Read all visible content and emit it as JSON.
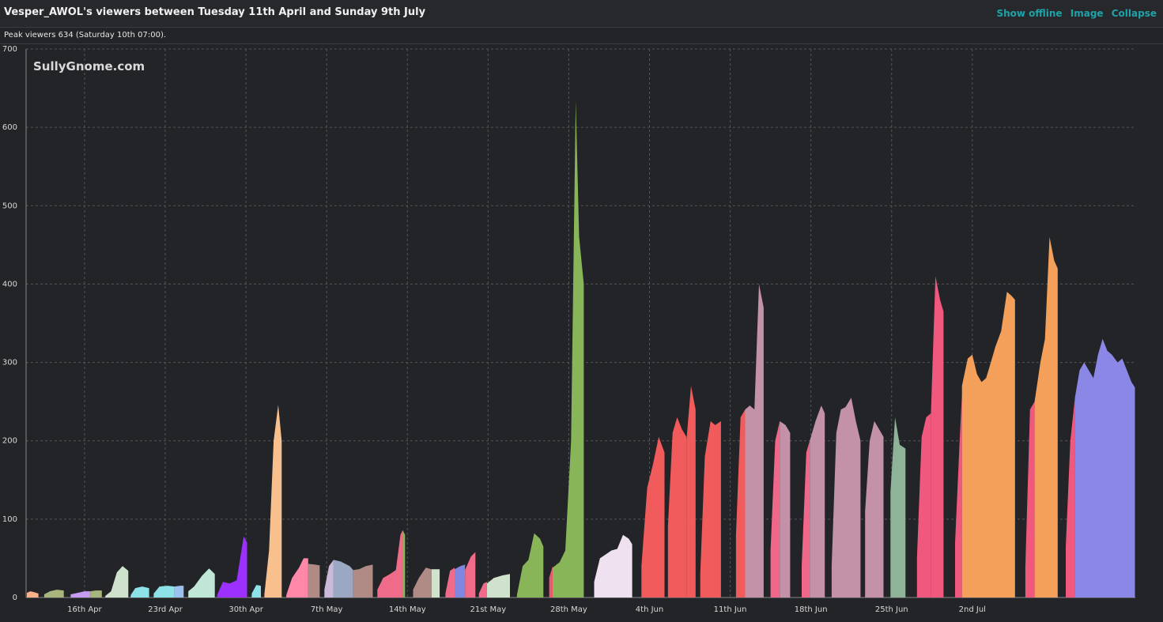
{
  "header": {
    "title": "Vesper_AWOL's viewers between Tuesday 11th April and Sunday 9th July",
    "actions": [
      "Show offline",
      "Image",
      "Collapse"
    ]
  },
  "subtitle": "Peak viewers 634 (Saturday 10th 07:00).",
  "watermark": "SullyGnome.com",
  "chart_data": {
    "type": "area",
    "title": "Vesper_AWOL's viewers between Tuesday 11th April and Sunday 9th July",
    "xlabel": "",
    "ylabel": "",
    "x_unit": "days since 11 Apr",
    "xlim": [
      0,
      89
    ],
    "ylim": [
      0,
      700
    ],
    "y_ticks": [
      0,
      100,
      200,
      300,
      400,
      500,
      600,
      700
    ],
    "x_ticks": [
      {
        "label": "16th Apr",
        "x": 5
      },
      {
        "label": "23rd Apr",
        "x": 12
      },
      {
        "label": "30th Apr",
        "x": 19
      },
      {
        "label": "7th May",
        "x": 26
      },
      {
        "label": "14th May",
        "x": 33
      },
      {
        "label": "21st May",
        "x": 40
      },
      {
        "label": "28th May",
        "x": 47
      },
      {
        "label": "4th Jun",
        "x": 54
      },
      {
        "label": "11th Jun",
        "x": 61
      },
      {
        "label": "18th Jun",
        "x": 68
      },
      {
        "label": "25th Jun",
        "x": 75
      },
      {
        "label": "2nd Jul",
        "x": 82
      }
    ],
    "grid": true,
    "streams": [
      {
        "color": "#ffb28a",
        "points": [
          [
            0.0,
            6
          ],
          [
            0.3,
            8
          ],
          [
            0.6,
            7
          ],
          [
            1.0,
            5
          ]
        ]
      },
      {
        "color": "#a8b67e",
        "points": [
          [
            1.5,
            4
          ],
          [
            2.0,
            8
          ],
          [
            2.6,
            10
          ],
          [
            3.2,
            9
          ]
        ]
      },
      {
        "color": "#c49bf0",
        "points": [
          [
            3.8,
            4
          ],
          [
            4.4,
            6
          ],
          [
            5.0,
            8
          ],
          [
            5.5,
            8
          ]
        ]
      },
      {
        "color": "#a8b67e",
        "points": [
          [
            5.5,
            8
          ],
          [
            6.0,
            9
          ],
          [
            6.5,
            9
          ]
        ]
      },
      {
        "color": "#cfe3cc",
        "points": [
          [
            6.8,
            2
          ],
          [
            7.3,
            8
          ],
          [
            7.8,
            32
          ],
          [
            8.3,
            40
          ],
          [
            8.8,
            34
          ]
        ]
      },
      {
        "color": "#8de2e8",
        "points": [
          [
            9.0,
            3
          ],
          [
            9.4,
            12
          ],
          [
            10.0,
            14
          ],
          [
            10.6,
            12
          ]
        ]
      },
      {
        "color": "#8de2e8",
        "points": [
          [
            11.0,
            5
          ],
          [
            11.5,
            14
          ],
          [
            12.2,
            15
          ],
          [
            12.8,
            14
          ]
        ]
      },
      {
        "color": "#9cc1f0",
        "points": [
          [
            12.8,
            14
          ],
          [
            13.3,
            15
          ],
          [
            13.6,
            15
          ]
        ]
      },
      {
        "color": "#bfe6d6",
        "points": [
          [
            14.0,
            8
          ],
          [
            14.5,
            14
          ],
          [
            15.2,
            28
          ],
          [
            15.8,
            37
          ],
          [
            16.3,
            30
          ]
        ]
      },
      {
        "color": "#9b30ff",
        "points": [
          [
            16.5,
            3
          ],
          [
            17.0,
            20
          ],
          [
            17.6,
            18
          ],
          [
            18.2,
            22
          ],
          [
            18.8,
            78
          ],
          [
            19.1,
            70
          ]
        ]
      },
      {
        "color": "#8de2e8",
        "points": [
          [
            19.5,
            5
          ],
          [
            19.9,
            16
          ],
          [
            20.3,
            15
          ]
        ]
      },
      {
        "color": "#f8c08c",
        "points": [
          [
            20.6,
            4
          ],
          [
            21.0,
            60
          ],
          [
            21.4,
            200
          ],
          [
            21.8,
            246
          ],
          [
            22.1,
            200
          ]
        ]
      },
      {
        "color": "#ff88a8",
        "points": [
          [
            22.5,
            3
          ],
          [
            23.0,
            25
          ],
          [
            23.6,
            38
          ],
          [
            24.0,
            50
          ],
          [
            24.4,
            50
          ]
        ]
      },
      {
        "color": "#b08a85",
        "points": [
          [
            24.4,
            43
          ],
          [
            25.0,
            42
          ],
          [
            25.4,
            41
          ]
        ]
      },
      {
        "color": "#cab9d9",
        "points": [
          [
            25.8,
            10
          ],
          [
            26.2,
            40
          ],
          [
            26.6,
            48
          ]
        ]
      },
      {
        "color": "#9aa8c4",
        "points": [
          [
            26.6,
            48
          ],
          [
            27.2,
            46
          ],
          [
            28.0,
            40
          ],
          [
            28.3,
            35
          ]
        ]
      },
      {
        "color": "#b08a85",
        "points": [
          [
            28.3,
            35
          ],
          [
            28.8,
            36
          ],
          [
            29.4,
            40
          ],
          [
            30.0,
            42
          ]
        ]
      },
      {
        "color": "#ee6c8a",
        "points": [
          [
            30.4,
            10
          ],
          [
            30.9,
            25
          ],
          [
            31.5,
            30
          ],
          [
            32.0,
            35
          ],
          [
            32.4,
            80
          ],
          [
            32.6,
            86
          ]
        ]
      },
      {
        "color": "#88b558",
        "points": [
          [
            32.6,
            86
          ],
          [
            32.8,
            80
          ]
        ]
      },
      {
        "color": "#b08a85",
        "points": [
          [
            33.5,
            10
          ],
          [
            34.0,
            25
          ],
          [
            34.6,
            38
          ],
          [
            35.1,
            36
          ]
        ]
      },
      {
        "color": "#cfe3cc",
        "points": [
          [
            35.1,
            36
          ],
          [
            35.5,
            36
          ],
          [
            35.8,
            36
          ]
        ]
      },
      {
        "color": "#f06a8a",
        "points": [
          [
            36.3,
            5
          ],
          [
            36.7,
            34
          ],
          [
            37.1,
            38
          ]
        ]
      },
      {
        "color": "#7f87e0",
        "points": [
          [
            37.1,
            36
          ],
          [
            37.6,
            40
          ],
          [
            38.0,
            42
          ]
        ]
      },
      {
        "color": "#f06a8a",
        "points": [
          [
            38.0,
            35
          ],
          [
            38.5,
            52
          ],
          [
            38.9,
            58
          ]
        ]
      },
      {
        "color": "#f06a8a",
        "points": [
          [
            39.2,
            5
          ],
          [
            39.6,
            18
          ],
          [
            39.9,
            20
          ]
        ]
      },
      {
        "color": "#cfe3cc",
        "points": [
          [
            39.9,
            18
          ],
          [
            40.5,
            25
          ],
          [
            41.2,
            28
          ],
          [
            41.9,
            30
          ]
        ]
      },
      {
        "color": "#88b558",
        "points": [
          [
            42.5,
            3
          ],
          [
            43.0,
            40
          ],
          [
            43.5,
            48
          ],
          [
            44.0,
            82
          ],
          [
            44.5,
            75
          ],
          [
            44.8,
            65
          ]
        ]
      },
      {
        "color": "#e85a6e",
        "points": [
          [
            45.3,
            25
          ],
          [
            45.6,
            40
          ]
        ]
      },
      {
        "color": "#88b558",
        "points": [
          [
            45.6,
            38
          ],
          [
            46.2,
            45
          ],
          [
            46.7,
            60
          ],
          [
            47.2,
            200
          ],
          [
            47.6,
            634
          ],
          [
            47.9,
            460
          ],
          [
            48.3,
            400
          ]
        ]
      },
      {
        "color": "#f0e1f0",
        "points": [
          [
            49.2,
            20
          ],
          [
            49.7,
            50
          ],
          [
            50.2,
            55
          ],
          [
            50.7,
            60
          ],
          [
            51.2,
            62
          ],
          [
            51.7,
            80
          ],
          [
            52.2,
            75
          ],
          [
            52.5,
            68
          ]
        ]
      },
      {
        "color": "#f25b5b",
        "points": [
          [
            53.3,
            40
          ],
          [
            53.8,
            140
          ],
          [
            54.3,
            170
          ],
          [
            54.8,
            205
          ],
          [
            55.3,
            185
          ]
        ]
      },
      {
        "color": "#f25b5b",
        "points": [
          [
            55.6,
            90
          ],
          [
            56.0,
            210
          ],
          [
            56.4,
            230
          ],
          [
            56.8,
            215
          ],
          [
            57.2,
            205
          ]
        ]
      },
      {
        "color": "#f25b5b",
        "points": [
          [
            57.2,
            200
          ],
          [
            57.6,
            270
          ],
          [
            58.0,
            240
          ]
        ]
      },
      {
        "color": "#f25b5b",
        "points": [
          [
            58.4,
            30
          ],
          [
            58.8,
            180
          ],
          [
            59.3,
            225
          ],
          [
            59.7,
            220
          ],
          [
            60.2,
            225
          ]
        ]
      },
      {
        "color": "#f25b5b",
        "points": [
          [
            61.5,
            80
          ],
          [
            61.9,
            230
          ],
          [
            62.3,
            240
          ]
        ]
      },
      {
        "color": "#c492a8",
        "points": [
          [
            62.3,
            240
          ],
          [
            62.7,
            245
          ],
          [
            63.1,
            240
          ],
          [
            63.5,
            400
          ],
          [
            63.9,
            370
          ]
        ]
      },
      {
        "color": "#f0678a",
        "points": [
          [
            64.5,
            60
          ],
          [
            64.9,
            200
          ],
          [
            65.3,
            225
          ]
        ]
      },
      {
        "color": "#c492a8",
        "points": [
          [
            65.3,
            225
          ],
          [
            65.8,
            220
          ],
          [
            66.2,
            210
          ]
        ]
      },
      {
        "color": "#f0678a",
        "points": [
          [
            67.2,
            40
          ],
          [
            67.6,
            185
          ],
          [
            67.9,
            200
          ]
        ]
      },
      {
        "color": "#c492a8",
        "points": [
          [
            67.9,
            200
          ],
          [
            68.4,
            225
          ],
          [
            68.9,
            245
          ],
          [
            69.2,
            235
          ]
        ]
      },
      {
        "color": "#c492a8",
        "points": [
          [
            69.8,
            40
          ],
          [
            70.2,
            210
          ],
          [
            70.6,
            240
          ],
          [
            71.0,
            243
          ],
          [
            71.5,
            255
          ],
          [
            71.9,
            225
          ],
          [
            72.3,
            200
          ]
        ]
      },
      {
        "color": "#c492a8",
        "points": [
          [
            72.7,
            110
          ],
          [
            73.1,
            200
          ],
          [
            73.5,
            225
          ],
          [
            73.9,
            215
          ],
          [
            74.3,
            205
          ]
        ]
      },
      {
        "color": "#8fb398",
        "points": [
          [
            74.9,
            135
          ],
          [
            75.3,
            230
          ],
          [
            75.7,
            195
          ],
          [
            76.2,
            190
          ]
        ]
      },
      {
        "color": "#f0587e",
        "points": [
          [
            77.2,
            50
          ],
          [
            77.6,
            205
          ],
          [
            78.0,
            230
          ],
          [
            78.4,
            235
          ]
        ]
      },
      {
        "color": "#f0587e",
        "points": [
          [
            78.4,
            230
          ],
          [
            78.8,
            410
          ],
          [
            79.2,
            380
          ],
          [
            79.5,
            365
          ]
        ]
      },
      {
        "color": "#f0587e",
        "points": [
          [
            80.5,
            70
          ],
          [
            80.9,
            200
          ],
          [
            81.1,
            260
          ]
        ]
      },
      {
        "color": "#f5a05a",
        "points": [
          [
            81.1,
            270
          ],
          [
            81.6,
            305
          ],
          [
            82.0,
            310
          ],
          [
            82.4,
            285
          ],
          [
            82.8,
            275
          ],
          [
            83.2,
            280
          ],
          [
            83.6,
            300
          ],
          [
            84.0,
            320
          ],
          [
            84.5,
            340
          ],
          [
            85.0,
            390
          ],
          [
            85.4,
            385
          ],
          [
            85.7,
            380
          ]
        ]
      },
      {
        "color": "#f0587e",
        "points": [
          [
            86.6,
            40
          ],
          [
            87.0,
            240
          ],
          [
            87.4,
            250
          ]
        ]
      },
      {
        "color": "#f5a05a",
        "points": [
          [
            87.4,
            250
          ],
          [
            87.9,
            300
          ],
          [
            88.3,
            330
          ],
          [
            88.7,
            460
          ],
          [
            89.1,
            430
          ],
          [
            89.4,
            420
          ]
        ]
      },
      {
        "color": "#f0587e",
        "points": [
          [
            90.1,
            65
          ],
          [
            90.5,
            200
          ],
          [
            90.9,
            255
          ]
        ]
      },
      {
        "color": "#8a87e6",
        "points": [
          [
            90.9,
            255
          ],
          [
            91.3,
            290
          ],
          [
            91.7,
            300
          ],
          [
            92.1,
            290
          ],
          [
            92.5,
            280
          ],
          [
            92.9,
            310
          ],
          [
            93.3,
            330
          ],
          [
            93.7,
            315
          ],
          [
            94.1,
            310
          ],
          [
            94.6,
            300
          ],
          [
            95.0,
            305
          ],
          [
            95.4,
            290
          ],
          [
            95.8,
            275
          ],
          [
            96.1,
            268
          ]
        ]
      }
    ]
  }
}
